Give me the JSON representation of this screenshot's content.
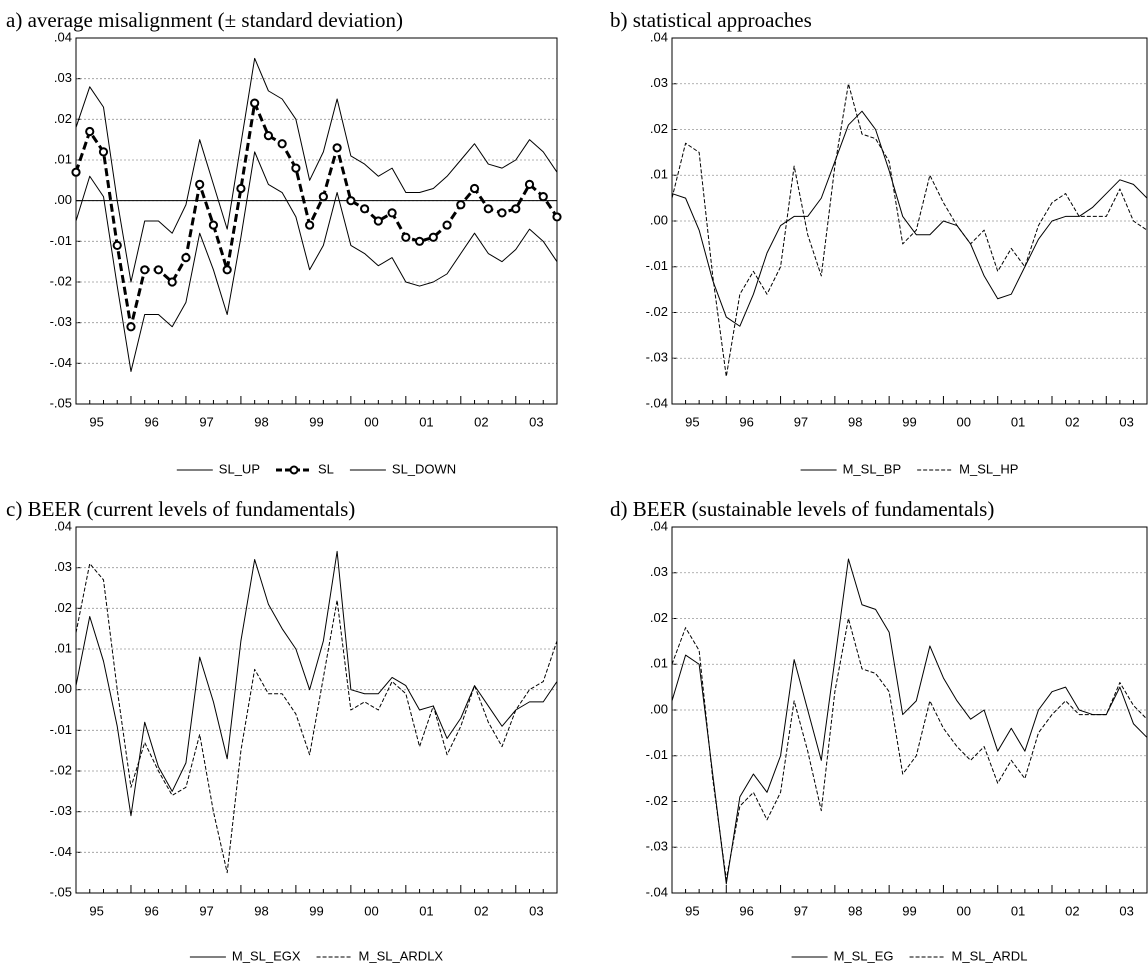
{
  "chart_data": [
    {
      "type": "line",
      "title": "a) average misalignment (± standard deviation)",
      "categories": [
        "95",
        null,
        null,
        null,
        "96",
        null,
        null,
        null,
        "97",
        null,
        null,
        null,
        "98",
        null,
        null,
        null,
        "99",
        null,
        null,
        null,
        "00",
        null,
        null,
        null,
        "01",
        null,
        null,
        null,
        "02",
        null,
        null,
        null,
        "03",
        null,
        null,
        null
      ],
      "ylim": [
        -0.05,
        0.04
      ],
      "yticks": [
        {
          "value": -0.05,
          "label": "-.05"
        },
        {
          "value": -0.04,
          "label": "-.04"
        },
        {
          "value": -0.03,
          "label": "-.03"
        },
        {
          "value": -0.02,
          "label": "-.02"
        },
        {
          "value": -0.01,
          "label": "-.01"
        },
        {
          "value": 0,
          "label": ".00"
        },
        {
          "value": 0.01,
          "label": ".01"
        },
        {
          "value": 0.02,
          "label": ".02"
        },
        {
          "value": 0.03,
          "label": ".03"
        },
        {
          "value": 0.04,
          "label": ".04"
        }
      ],
      "grid": true,
      "zero_line": true,
      "series": [
        {
          "name": "SL_UP",
          "color": "#000000",
          "dash": false,
          "width": 1,
          "values": [
            0.018,
            0.028,
            0.023,
            0.0,
            -0.02,
            -0.005,
            -0.005,
            -0.008,
            -0.001,
            0.015,
            0.004,
            -0.007,
            0.014,
            0.035,
            0.027,
            0.025,
            0.02,
            0.005,
            0.012,
            0.025,
            0.011,
            0.009,
            0.006,
            0.008,
            0.002,
            0.002,
            0.003,
            0.006,
            0.01,
            0.014,
            0.009,
            0.008,
            0.01,
            0.015,
            0.012,
            0.007
          ]
        },
        {
          "name": "SL",
          "color": "#000000",
          "dash": true,
          "width": 3,
          "marker": "circle",
          "values": [
            0.007,
            0.017,
            0.012,
            -0.011,
            -0.031,
            -0.017,
            -0.017,
            -0.02,
            -0.014,
            0.004,
            -0.006,
            -0.017,
            0.003,
            0.024,
            0.016,
            0.014,
            0.008,
            -0.006,
            0.001,
            0.013,
            0.0,
            -0.002,
            -0.005,
            -0.003,
            -0.009,
            -0.01,
            -0.009,
            -0.006,
            -0.001,
            0.003,
            -0.002,
            -0.003,
            -0.002,
            0.004,
            0.001,
            -0.004
          ]
        },
        {
          "name": "SL_DOWN",
          "color": "#000000",
          "dash": false,
          "width": 1,
          "values": [
            -0.005,
            0.006,
            0.001,
            -0.021,
            -0.042,
            -0.028,
            -0.028,
            -0.031,
            -0.025,
            -0.008,
            -0.017,
            -0.028,
            -0.009,
            0.012,
            0.004,
            0.002,
            -0.004,
            -0.017,
            -0.011,
            0.002,
            -0.011,
            -0.013,
            -0.016,
            -0.014,
            -0.02,
            -0.021,
            -0.02,
            -0.018,
            -0.013,
            -0.008,
            -0.013,
            -0.015,
            -0.012,
            -0.007,
            -0.01,
            -0.015
          ]
        }
      ]
    },
    {
      "type": "line",
      "title": "b) statistical approaches",
      "categories": [
        "95",
        null,
        null,
        null,
        "96",
        null,
        null,
        null,
        "97",
        null,
        null,
        null,
        "98",
        null,
        null,
        null,
        "99",
        null,
        null,
        null,
        "00",
        null,
        null,
        null,
        "01",
        null,
        null,
        null,
        "02",
        null,
        null,
        null,
        "03",
        null,
        null,
        null
      ],
      "ylim": [
        -0.04,
        0.04
      ],
      "yticks": [
        {
          "value": -0.04,
          "label": "-.04"
        },
        {
          "value": -0.03,
          "label": "-.03"
        },
        {
          "value": -0.02,
          "label": "-.02"
        },
        {
          "value": -0.01,
          "label": "-.01"
        },
        {
          "value": 0,
          "label": ".00"
        },
        {
          "value": 0.01,
          "label": ".01"
        },
        {
          "value": 0.02,
          "label": ".02"
        },
        {
          "value": 0.03,
          "label": ".03"
        },
        {
          "value": 0.04,
          "label": ".04"
        }
      ],
      "grid": true,
      "series": [
        {
          "name": "M_SL_BP",
          "color": "#000000",
          "dash": false,
          "width": 1,
          "values": [
            0.006,
            0.005,
            -0.002,
            -0.013,
            -0.021,
            -0.023,
            -0.016,
            -0.007,
            -0.001,
            0.001,
            0.001,
            0.005,
            0.013,
            0.021,
            0.024,
            0.02,
            0.011,
            0.001,
            -0.003,
            -0.003,
            0.0,
            -0.001,
            -0.005,
            -0.012,
            -0.017,
            -0.016,
            -0.01,
            -0.004,
            0.0,
            0.001,
            0.001,
            0.003,
            0.006,
            0.009,
            0.008,
            0.005
          ]
        },
        {
          "name": "M_SL_HP",
          "color": "#000000",
          "dash": true,
          "width": 1,
          "values": [
            0.005,
            0.017,
            0.015,
            -0.012,
            -0.034,
            -0.016,
            -0.011,
            -0.016,
            -0.01,
            0.012,
            -0.003,
            -0.012,
            0.012,
            0.03,
            0.019,
            0.018,
            0.013,
            -0.005,
            -0.002,
            0.01,
            0.004,
            -0.001,
            -0.005,
            -0.002,
            -0.011,
            -0.006,
            -0.01,
            -0.001,
            0.004,
            0.006,
            0.001,
            0.001,
            0.001,
            0.007,
            0.0,
            -0.002
          ]
        }
      ]
    },
    {
      "type": "line",
      "title": "c) BEER (current levels of fundamentals)",
      "categories": [
        "95",
        null,
        null,
        null,
        "96",
        null,
        null,
        null,
        "97",
        null,
        null,
        null,
        "98",
        null,
        null,
        null,
        "99",
        null,
        null,
        null,
        "00",
        null,
        null,
        null,
        "01",
        null,
        null,
        null,
        "02",
        null,
        null,
        null,
        "03",
        null,
        null,
        null
      ],
      "ylim": [
        -0.05,
        0.04
      ],
      "yticks": [
        {
          "value": -0.05,
          "label": "-.05"
        },
        {
          "value": -0.04,
          "label": "-.04"
        },
        {
          "value": -0.03,
          "label": "-.03"
        },
        {
          "value": -0.02,
          "label": "-.02"
        },
        {
          "value": -0.01,
          "label": "-.01"
        },
        {
          "value": 0,
          "label": ".00"
        },
        {
          "value": 0.01,
          "label": ".01"
        },
        {
          "value": 0.02,
          "label": ".02"
        },
        {
          "value": 0.03,
          "label": ".03"
        },
        {
          "value": 0.04,
          "label": ".04"
        }
      ],
      "grid": true,
      "series": [
        {
          "name": "M_SL_EGX",
          "color": "#000000",
          "dash": false,
          "width": 1,
          "values": [
            0.001,
            0.018,
            0.007,
            -0.009,
            -0.031,
            -0.008,
            -0.019,
            -0.025,
            -0.018,
            0.008,
            -0.003,
            -0.017,
            0.012,
            0.032,
            0.021,
            0.015,
            0.01,
            0.0,
            0.012,
            0.034,
            0.0,
            -0.001,
            -0.001,
            0.003,
            0.001,
            -0.005,
            -0.004,
            -0.012,
            -0.007,
            0.001,
            -0.004,
            -0.009,
            -0.005,
            -0.003,
            -0.003,
            0.002
          ]
        },
        {
          "name": "M_SL_ARDLX",
          "color": "#000000",
          "dash": true,
          "width": 1,
          "values": [
            0.014,
            0.031,
            0.027,
            0.0,
            -0.024,
            -0.013,
            -0.02,
            -0.026,
            -0.024,
            -0.011,
            -0.03,
            -0.045,
            -0.015,
            0.005,
            -0.001,
            -0.001,
            -0.006,
            -0.016,
            0.003,
            0.022,
            -0.005,
            -0.003,
            -0.005,
            0.002,
            -0.001,
            -0.014,
            -0.004,
            -0.016,
            -0.009,
            0.001,
            -0.008,
            -0.014,
            -0.005,
            0.0,
            0.002,
            0.012
          ]
        }
      ]
    },
    {
      "type": "line",
      "title": "d) BEER (sustainable levels of fundamentals)",
      "categories": [
        "95",
        null,
        null,
        null,
        "96",
        null,
        null,
        null,
        "97",
        null,
        null,
        null,
        "98",
        null,
        null,
        null,
        "99",
        null,
        null,
        null,
        "00",
        null,
        null,
        null,
        "01",
        null,
        null,
        null,
        "02",
        null,
        null,
        null,
        "03",
        null,
        null,
        null
      ],
      "ylim": [
        -0.04,
        0.04
      ],
      "yticks": [
        {
          "value": -0.04,
          "label": "-.04"
        },
        {
          "value": -0.03,
          "label": "-.03"
        },
        {
          "value": -0.02,
          "label": "-.02"
        },
        {
          "value": -0.01,
          "label": "-.01"
        },
        {
          "value": 0,
          "label": ".00"
        },
        {
          "value": 0.01,
          "label": ".01"
        },
        {
          "value": 0.02,
          "label": ".02"
        },
        {
          "value": 0.03,
          "label": ".03"
        },
        {
          "value": 0.04,
          "label": ".04"
        }
      ],
      "grid": true,
      "series": [
        {
          "name": "M_SL_EG",
          "color": "#000000",
          "dash": false,
          "width": 1,
          "values": [
            0.002,
            0.012,
            0.01,
            -0.014,
            -0.038,
            -0.019,
            -0.014,
            -0.018,
            -0.01,
            0.011,
            0.0,
            -0.011,
            0.011,
            0.033,
            0.023,
            0.022,
            0.017,
            -0.001,
            0.002,
            0.014,
            0.007,
            0.002,
            -0.002,
            0.0,
            -0.009,
            -0.004,
            -0.009,
            0.0,
            0.004,
            0.005,
            0.0,
            -0.001,
            -0.001,
            0.005,
            -0.003,
            -0.006
          ]
        },
        {
          "name": "M_SL_ARDL",
          "color": "#000000",
          "dash": true,
          "width": 1,
          "values": [
            0.01,
            0.018,
            0.013,
            -0.015,
            -0.037,
            -0.021,
            -0.018,
            -0.024,
            -0.018,
            0.002,
            -0.009,
            -0.022,
            0.004,
            0.02,
            0.009,
            0.008,
            0.004,
            -0.014,
            -0.01,
            0.002,
            -0.004,
            -0.008,
            -0.011,
            -0.008,
            -0.016,
            -0.011,
            -0.015,
            -0.005,
            -0.001,
            0.002,
            -0.001,
            -0.001,
            -0.001,
            0.006,
            0.001,
            -0.002
          ]
        }
      ]
    }
  ]
}
